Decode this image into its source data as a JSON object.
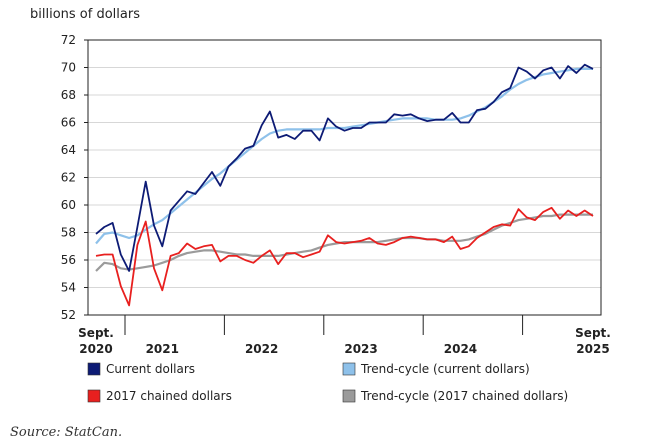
{
  "source_text": "Source: StatCan.",
  "chart_data": {
    "type": "line",
    "ylabel": "billions of dollars",
    "ylim": [
      52,
      72
    ],
    "yticks": [
      52,
      54,
      56,
      58,
      60,
      62,
      64,
      66,
      68,
      70,
      72
    ],
    "x_labels": [
      {
        "index": 0,
        "line1": "Sept.",
        "line2": "2020"
      },
      {
        "index": 8,
        "line1": "",
        "line2": "2021"
      },
      {
        "index": 20,
        "line1": "",
        "line2": "2022"
      },
      {
        "index": 32,
        "line1": "",
        "line2": "2023"
      },
      {
        "index": 44,
        "line1": "",
        "line2": "2024"
      },
      {
        "index": 60,
        "line1": "Sept.",
        "line2": "2025"
      }
    ],
    "year_ticks": [
      3.5,
      15.5,
      27.5,
      39.5,
      51.5
    ],
    "n_points": 61,
    "series": [
      {
        "name": "Current dollars",
        "color": "#0d1b75",
        "values": [
          57.9,
          58.4,
          58.7,
          56.4,
          55.2,
          58.4,
          61.7,
          58.5,
          57.0,
          59.6,
          60.3,
          61.0,
          60.8,
          61.6,
          62.4,
          61.4,
          62.8,
          63.4,
          64.1,
          64.3,
          65.8,
          66.8,
          64.9,
          65.1,
          64.8,
          65.4,
          65.4,
          64.7,
          66.3,
          65.7,
          65.4,
          65.6,
          65.6,
          66.0,
          66.0,
          66.0,
          66.6,
          66.5,
          66.6,
          66.3,
          66.1,
          66.2,
          66.2,
          66.7,
          66.0,
          66.0,
          66.9,
          67.0,
          67.5,
          68.2,
          68.5,
          70.0,
          69.7,
          69.2,
          69.8,
          70.0,
          69.2,
          70.1,
          69.6,
          70.2,
          69.9
        ]
      },
      {
        "name": "Trend-cycle (current dollars)",
        "color": "#8ec1ea",
        "values": [
          57.2,
          57.9,
          58.0,
          57.8,
          57.6,
          57.8,
          58.2,
          58.6,
          58.9,
          59.4,
          59.9,
          60.4,
          60.9,
          61.4,
          61.9,
          62.3,
          62.8,
          63.3,
          63.8,
          64.3,
          64.8,
          65.2,
          65.4,
          65.5,
          65.5,
          65.5,
          65.5,
          65.5,
          65.6,
          65.6,
          65.6,
          65.7,
          65.8,
          65.9,
          66.0,
          66.1,
          66.2,
          66.3,
          66.3,
          66.3,
          66.3,
          66.2,
          66.2,
          66.2,
          66.3,
          66.5,
          66.8,
          67.1,
          67.5,
          67.9,
          68.4,
          68.8,
          69.1,
          69.3,
          69.5,
          69.6,
          69.7,
          69.8,
          69.9,
          69.9,
          69.9
        ]
      },
      {
        "name": "2017 chained dollars",
        "color": "#e8201f",
        "values": [
          56.3,
          56.4,
          56.4,
          54.1,
          52.7,
          57.1,
          58.8,
          55.4,
          53.8,
          56.3,
          56.5,
          57.2,
          56.8,
          57.0,
          57.1,
          55.9,
          56.3,
          56.3,
          56.0,
          55.8,
          56.3,
          56.7,
          55.7,
          56.5,
          56.5,
          56.2,
          56.4,
          56.6,
          57.8,
          57.3,
          57.2,
          57.3,
          57.4,
          57.6,
          57.2,
          57.1,
          57.3,
          57.6,
          57.7,
          57.6,
          57.5,
          57.5,
          57.3,
          57.7,
          56.8,
          57.0,
          57.6,
          58.0,
          58.4,
          58.6,
          58.5,
          59.7,
          59.1,
          58.9,
          59.5,
          59.8,
          59.0,
          59.6,
          59.2,
          59.6,
          59.2
        ]
      },
      {
        "name": "Trend-cycle (2017 chained dollars)",
        "color": "#9b9b9b",
        "values": [
          55.2,
          55.8,
          55.7,
          55.4,
          55.3,
          55.4,
          55.5,
          55.6,
          55.8,
          56.0,
          56.3,
          56.5,
          56.6,
          56.7,
          56.7,
          56.6,
          56.5,
          56.4,
          56.4,
          56.3,
          56.3,
          56.3,
          56.3,
          56.4,
          56.5,
          56.6,
          56.7,
          56.9,
          57.1,
          57.2,
          57.3,
          57.3,
          57.3,
          57.3,
          57.3,
          57.4,
          57.5,
          57.6,
          57.6,
          57.6,
          57.5,
          57.5,
          57.4,
          57.4,
          57.4,
          57.5,
          57.7,
          57.9,
          58.2,
          58.5,
          58.7,
          58.9,
          59.0,
          59.1,
          59.2,
          59.2,
          59.3,
          59.3,
          59.3,
          59.3,
          59.3
        ]
      }
    ]
  }
}
